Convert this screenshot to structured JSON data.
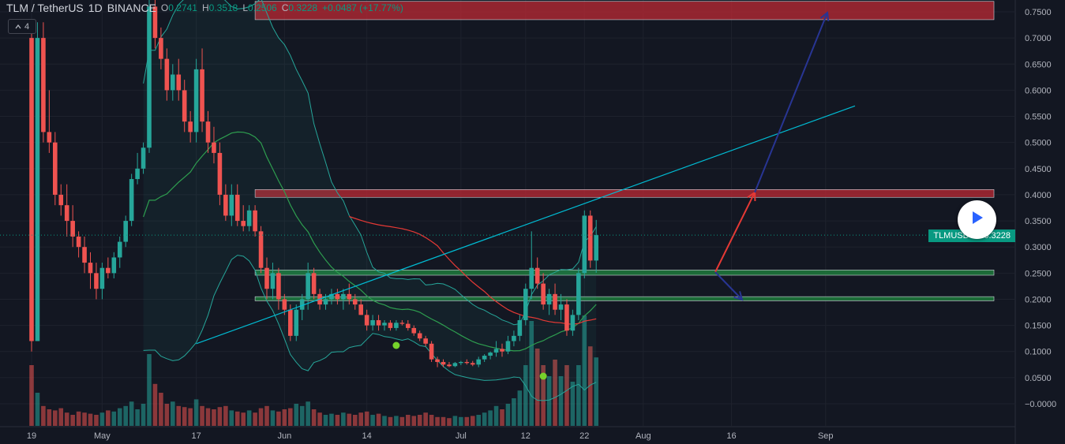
{
  "header": {
    "symbol": "TLM / TetherUS",
    "interval": "1D",
    "exchange": "BINANCE",
    "open_label": "O",
    "open": "0.2741",
    "high_label": "H",
    "high": "0.3518",
    "low_label": "L",
    "low": "0.2506",
    "close_label": "C",
    "close": "0.3228",
    "change": "+0.0487 (+17.77%)"
  },
  "collapse_button": {
    "label": "4",
    "icon": "chevron-up-icon"
  },
  "price_tag": {
    "label": "TLMUSDT",
    "value": "0.3228",
    "color": "#089981"
  },
  "play_button": {
    "icon": "play-icon",
    "color": "#2962ff"
  },
  "colors": {
    "up": "#26a69a",
    "down": "#ef5350",
    "zone_red": "#b22833",
    "zone_green": "#1e7a3c",
    "trendline": "#00bcd4",
    "arrow_up": "#1a237e",
    "arrow_red": "#e53935"
  },
  "chart_data": {
    "type": "candlestick",
    "x_ticks": [
      {
        "day": 0,
        "label": "19"
      },
      {
        "day": 12,
        "label": "May"
      },
      {
        "day": 28,
        "label": "17"
      },
      {
        "day": 43,
        "label": "Jun"
      },
      {
        "day": 57,
        "label": "14"
      },
      {
        "day": 73,
        "label": "Jul"
      },
      {
        "day": 84,
        "label": "12"
      },
      {
        "day": 94,
        "label": "22"
      },
      {
        "day": 104,
        "label": "Aug"
      },
      {
        "day": 119,
        "label": "16"
      },
      {
        "day": 135,
        "label": "Sep"
      }
    ],
    "y_ticks": [
      "0.7500",
      "0.7000",
      "0.6500",
      "0.6000",
      "0.5500",
      "0.5000",
      "0.4500",
      "0.4000",
      "0.3500",
      "0.3000",
      "0.2500",
      "0.2000",
      "0.1500",
      "0.1000",
      "0.0500",
      "−0.0000"
    ],
    "ylim": [
      -0.03,
      0.77
    ],
    "last_price": 0.3228,
    "candles": [
      [
        0.7,
        0.72,
        0.1,
        0.12
      ],
      [
        0.12,
        0.73,
        0.12,
        0.7
      ],
      [
        0.7,
        0.73,
        0.5,
        0.52
      ],
      [
        0.52,
        0.6,
        0.48,
        0.5
      ],
      [
        0.5,
        0.52,
        0.38,
        0.4
      ],
      [
        0.4,
        0.42,
        0.36,
        0.38
      ],
      [
        0.38,
        0.42,
        0.32,
        0.35
      ],
      [
        0.35,
        0.38,
        0.3,
        0.32
      ],
      [
        0.32,
        0.33,
        0.28,
        0.3
      ],
      [
        0.3,
        0.32,
        0.25,
        0.27
      ],
      [
        0.27,
        0.29,
        0.22,
        0.25
      ],
      [
        0.25,
        0.27,
        0.2,
        0.22
      ],
      [
        0.22,
        0.27,
        0.2,
        0.26
      ],
      [
        0.26,
        0.28,
        0.24,
        0.25
      ],
      [
        0.25,
        0.29,
        0.24,
        0.28
      ],
      [
        0.28,
        0.32,
        0.26,
        0.31
      ],
      [
        0.31,
        0.36,
        0.3,
        0.35
      ],
      [
        0.35,
        0.44,
        0.34,
        0.43
      ],
      [
        0.43,
        0.48,
        0.42,
        0.45
      ],
      [
        0.45,
        0.5,
        0.44,
        0.49
      ],
      [
        0.49,
        0.78,
        0.48,
        0.76
      ],
      [
        0.76,
        0.78,
        0.68,
        0.7
      ],
      [
        0.7,
        0.72,
        0.64,
        0.66
      ],
      [
        0.66,
        0.68,
        0.58,
        0.6
      ],
      [
        0.6,
        0.65,
        0.58,
        0.63
      ],
      [
        0.63,
        0.66,
        0.58,
        0.6
      ],
      [
        0.6,
        0.62,
        0.52,
        0.54
      ],
      [
        0.54,
        0.56,
        0.5,
        0.52
      ],
      [
        0.52,
        0.66,
        0.5,
        0.64
      ],
      [
        0.64,
        0.68,
        0.52,
        0.54
      ],
      [
        0.54,
        0.56,
        0.48,
        0.5
      ],
      [
        0.5,
        0.53,
        0.46,
        0.48
      ],
      [
        0.48,
        0.5,
        0.38,
        0.4
      ],
      [
        0.4,
        0.42,
        0.35,
        0.36
      ],
      [
        0.36,
        0.42,
        0.34,
        0.4
      ],
      [
        0.4,
        0.42,
        0.34,
        0.35
      ],
      [
        0.35,
        0.38,
        0.33,
        0.34
      ],
      [
        0.34,
        0.38,
        0.33,
        0.37
      ],
      [
        0.37,
        0.38,
        0.32,
        0.33
      ],
      [
        0.33,
        0.34,
        0.25,
        0.26
      ],
      [
        0.26,
        0.28,
        0.2,
        0.22
      ],
      [
        0.22,
        0.27,
        0.2,
        0.25
      ],
      [
        0.25,
        0.26,
        0.18,
        0.2
      ],
      [
        0.2,
        0.21,
        0.17,
        0.18
      ],
      [
        0.18,
        0.19,
        0.12,
        0.13
      ],
      [
        0.13,
        0.19,
        0.12,
        0.18
      ],
      [
        0.18,
        0.21,
        0.16,
        0.2
      ],
      [
        0.2,
        0.27,
        0.18,
        0.25
      ],
      [
        0.25,
        0.26,
        0.2,
        0.21
      ],
      [
        0.21,
        0.22,
        0.18,
        0.19
      ],
      [
        0.19,
        0.21,
        0.18,
        0.2
      ],
      [
        0.2,
        0.22,
        0.19,
        0.21
      ],
      [
        0.21,
        0.22,
        0.19,
        0.2
      ],
      [
        0.2,
        0.22,
        0.18,
        0.21
      ],
      [
        0.21,
        0.23,
        0.19,
        0.2
      ],
      [
        0.2,
        0.21,
        0.18,
        0.19
      ],
      [
        0.19,
        0.2,
        0.17,
        0.17
      ],
      [
        0.17,
        0.18,
        0.14,
        0.15
      ],
      [
        0.15,
        0.17,
        0.14,
        0.16
      ],
      [
        0.16,
        0.17,
        0.14,
        0.15
      ],
      [
        0.15,
        0.16,
        0.14,
        0.155
      ],
      [
        0.155,
        0.16,
        0.14,
        0.145
      ],
      [
        0.145,
        0.16,
        0.14,
        0.155
      ],
      [
        0.155,
        0.16,
        0.15,
        0.153
      ],
      [
        0.153,
        0.16,
        0.14,
        0.145
      ],
      [
        0.145,
        0.15,
        0.13,
        0.135
      ],
      [
        0.135,
        0.14,
        0.12,
        0.125
      ],
      [
        0.125,
        0.13,
        0.11,
        0.115
      ],
      [
        0.115,
        0.12,
        0.08,
        0.085
      ],
      [
        0.085,
        0.09,
        0.07,
        0.08
      ],
      [
        0.08,
        0.085,
        0.07,
        0.075
      ],
      [
        0.075,
        0.08,
        0.07,
        0.072
      ],
      [
        0.072,
        0.08,
        0.07,
        0.078
      ],
      [
        0.078,
        0.082,
        0.074,
        0.08
      ],
      [
        0.08,
        0.085,
        0.075,
        0.078
      ],
      [
        0.078,
        0.082,
        0.072,
        0.075
      ],
      [
        0.075,
        0.09,
        0.07,
        0.085
      ],
      [
        0.085,
        0.095,
        0.08,
        0.092
      ],
      [
        0.092,
        0.1,
        0.085,
        0.098
      ],
      [
        0.098,
        0.12,
        0.09,
        0.105
      ],
      [
        0.105,
        0.115,
        0.09,
        0.1
      ],
      [
        0.1,
        0.13,
        0.095,
        0.12
      ],
      [
        0.12,
        0.14,
        0.11,
        0.13
      ],
      [
        0.13,
        0.17,
        0.12,
        0.16
      ],
      [
        0.16,
        0.23,
        0.15,
        0.22
      ],
      [
        0.22,
        0.33,
        0.2,
        0.26
      ],
      [
        0.26,
        0.28,
        0.22,
        0.23
      ],
      [
        0.23,
        0.25,
        0.18,
        0.19
      ],
      [
        0.19,
        0.22,
        0.17,
        0.21
      ],
      [
        0.21,
        0.23,
        0.17,
        0.18
      ],
      [
        0.18,
        0.21,
        0.16,
        0.19
      ],
      [
        0.19,
        0.2,
        0.13,
        0.14
      ],
      [
        0.14,
        0.18,
        0.13,
        0.17
      ],
      [
        0.17,
        0.26,
        0.16,
        0.25
      ],
      [
        0.25,
        0.37,
        0.24,
        0.36
      ],
      [
        0.36,
        0.37,
        0.26,
        0.2741
      ],
      [
        0.2741,
        0.3518,
        0.2506,
        0.3228
      ]
    ],
    "volumes": [
      0.55,
      0.3,
      0.18,
      0.15,
      0.14,
      0.16,
      0.12,
      0.1,
      0.13,
      0.12,
      0.11,
      0.1,
      0.12,
      0.14,
      0.13,
      0.16,
      0.18,
      0.22,
      0.15,
      0.2,
      0.65,
      0.38,
      0.3,
      0.2,
      0.22,
      0.18,
      0.17,
      0.16,
      0.24,
      0.18,
      0.16,
      0.15,
      0.17,
      0.18,
      0.14,
      0.13,
      0.12,
      0.14,
      0.12,
      0.16,
      0.18,
      0.14,
      0.13,
      0.15,
      0.16,
      0.2,
      0.18,
      0.22,
      0.15,
      0.12,
      0.1,
      0.11,
      0.1,
      0.12,
      0.11,
      0.1,
      0.12,
      0.13,
      0.1,
      0.11,
      0.09,
      0.08,
      0.09,
      0.08,
      0.1,
      0.09,
      0.1,
      0.12,
      0.1,
      0.08,
      0.08,
      0.07,
      0.09,
      0.08,
      0.08,
      0.09,
      0.1,
      0.12,
      0.14,
      0.18,
      0.15,
      0.2,
      0.25,
      0.32,
      0.55,
      0.95,
      0.7,
      0.55,
      0.45,
      0.6,
      0.45,
      0.55,
      0.4,
      0.55,
      1.0,
      0.72,
      0.62
    ],
    "annotations": {
      "resistance_zones": [
        [
          0.735,
          0.77
        ],
        [
          0.395,
          0.41
        ]
      ],
      "support_zones": [
        [
          0.246,
          0.256
        ],
        [
          0.197,
          0.205
        ]
      ],
      "trendline": [
        [
          28,
          0.115
        ],
        [
          140,
          0.57
        ]
      ]
    }
  }
}
